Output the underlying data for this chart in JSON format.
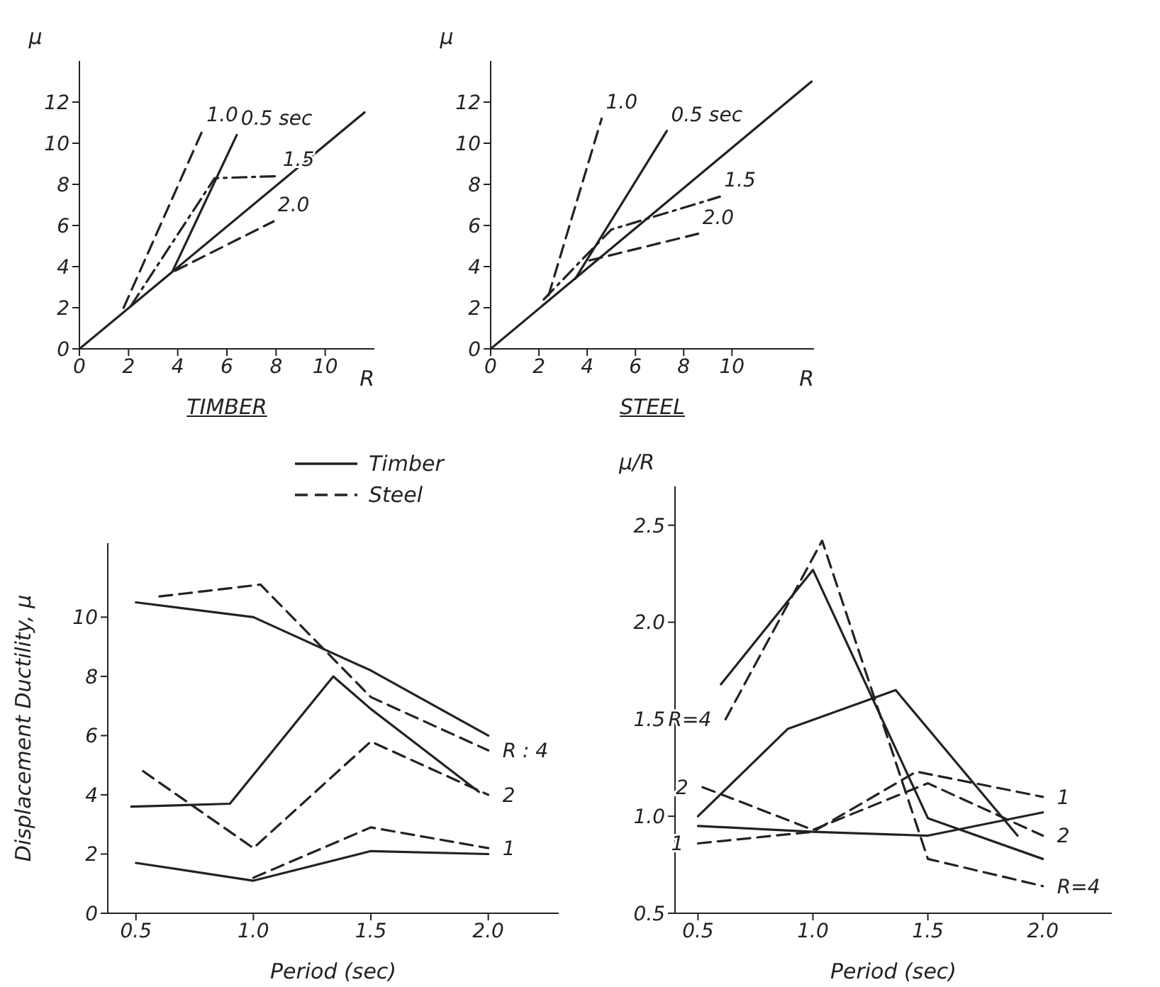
{
  "chart_data": [
    {
      "type": "line",
      "title": "TIMBER",
      "xlabel": "R",
      "ylabel": "μ",
      "xlim": [
        0,
        12
      ],
      "ylim": [
        0,
        14
      ],
      "xticks": [
        0,
        2,
        4,
        6,
        8,
        10
      ],
      "yticks": [
        0,
        2,
        4,
        6,
        8,
        10,
        12
      ],
      "series": [
        {
          "color": "#222222",
          "line_style": "solid",
          "x": [
            0,
            11.6
          ],
          "values": [
            0,
            11.5
          ]
        },
        {
          "name": "0.5 sec",
          "color": "#222222",
          "line_style": "solid",
          "x": [
            3.8,
            6.4
          ],
          "values": [
            3.8,
            10.4
          ]
        },
        {
          "name": "1.0",
          "color": "#222222",
          "line_style": "dashed",
          "x": [
            1.8,
            5.0
          ],
          "values": [
            2.0,
            10.6
          ]
        },
        {
          "name": "1.5",
          "color": "#222222",
          "line_style": "dashdot",
          "x": [
            2.1,
            5.5,
            8.1
          ],
          "values": [
            2.1,
            8.3,
            8.4
          ]
        },
        {
          "name": "2.0",
          "color": "#222222",
          "line_style": "dashed",
          "x": [
            3.9,
            7.9
          ],
          "values": [
            3.8,
            6.2
          ]
        }
      ]
    },
    {
      "type": "line",
      "title": "STEEL",
      "xlabel": "R",
      "ylabel": "μ",
      "xlim": [
        0,
        13.4
      ],
      "ylim": [
        0,
        14
      ],
      "xticks": [
        0,
        2,
        4,
        6,
        8,
        10
      ],
      "yticks": [
        0,
        2,
        4,
        6,
        8,
        10,
        12
      ],
      "series": [
        {
          "color": "#222222",
          "line_style": "solid",
          "x": [
            0,
            13.3
          ],
          "values": [
            0,
            13.0
          ]
        },
        {
          "name": "0.5 sec",
          "color": "#222222",
          "line_style": "solid",
          "x": [
            3.5,
            7.3
          ],
          "values": [
            3.4,
            10.6
          ]
        },
        {
          "name": "1.0",
          "color": "#222222",
          "line_style": "dashed",
          "x": [
            2.4,
            4.6
          ],
          "values": [
            2.6,
            11.2
          ]
        },
        {
          "name": "1.5",
          "color": "#222222",
          "line_style": "dashdot",
          "x": [
            2.2,
            4.0,
            5.0,
            9.5
          ],
          "values": [
            2.4,
            4.6,
            5.8,
            7.4
          ]
        },
        {
          "name": "2.0",
          "color": "#222222",
          "line_style": "dashed",
          "x": [
            4.1,
            8.6
          ],
          "values": [
            4.3,
            5.6
          ]
        }
      ]
    },
    {
      "type": "line",
      "xlabel": "Period (sec)",
      "ylabel": "Displacement Ductility, μ",
      "xlim": [
        0.38,
        2.3
      ],
      "ylim": [
        0,
        12.5
      ],
      "xticks": [
        {
          "value": 0.5,
          "label": "0.5"
        },
        {
          "value": 1,
          "label": "1.0"
        },
        {
          "value": 1.5,
          "label": "1.5"
        },
        {
          "value": 2,
          "label": "2.0"
        }
      ],
      "yticks": [
        0,
        2,
        4,
        6,
        8,
        10
      ],
      "legend": "top",
      "series": [
        {
          "name": "Timber",
          "color": "#222222",
          "line_style": "solid",
          "x": [
            0.5,
            1.0,
            1.5,
            2.0
          ],
          "values": [
            10.5,
            10.0,
            8.2,
            6.0
          ]
        },
        {
          "name": "Steel",
          "color": "#222222",
          "line_style": "dashed",
          "x": [
            0.6,
            1.03,
            1.5,
            2.0
          ],
          "values": [
            10.7,
            11.1,
            7.3,
            5.5
          ]
        },
        {
          "color": "#222222",
          "line_style": "solid",
          "x": [
            0.48,
            0.9,
            1.34,
            1.5,
            1.96
          ],
          "values": [
            3.6,
            3.7,
            8.0,
            6.9,
            4.1
          ]
        },
        {
          "color": "#222222",
          "line_style": "dashed",
          "x": [
            0.53,
            1.0,
            1.5,
            2.0
          ],
          "values": [
            4.8,
            2.2,
            5.8,
            4.0
          ]
        },
        {
          "color": "#222222",
          "line_style": "solid",
          "x": [
            0.5,
            1.0,
            1.5,
            2.0
          ],
          "values": [
            1.7,
            1.1,
            2.1,
            2.0
          ]
        },
        {
          "color": "#222222",
          "line_style": "dashed",
          "x": [
            1.0,
            1.5,
            2.0
          ],
          "values": [
            1.2,
            2.9,
            2.2
          ]
        }
      ],
      "annotations": [
        {
          "text": "R : 4",
          "x": 2.0,
          "y": 5.5
        },
        {
          "text": "2",
          "x": 2.0,
          "y": 4.0
        },
        {
          "text": "1",
          "x": 2.0,
          "y": 2.2
        }
      ]
    },
    {
      "type": "line",
      "xlabel": "Period (sec)",
      "ylabel": "μ/R",
      "xlim": [
        0.4,
        2.3
      ],
      "ylim": [
        0.5,
        2.7
      ],
      "xticks": [
        {
          "value": 0.5,
          "label": "0.5"
        },
        {
          "value": 1,
          "label": "1.0"
        },
        {
          "value": 1.5,
          "label": "1.5"
        },
        {
          "value": 2,
          "label": "2.0"
        }
      ],
      "yticks": [
        {
          "value": 0.5,
          "label": "0.5"
        },
        {
          "value": 1,
          "label": "1.0"
        },
        {
          "value": 1.5,
          "label": "1.5"
        },
        {
          "value": 2,
          "label": "2.0"
        },
        {
          "value": 2.5,
          "label": "2.5"
        }
      ],
      "series": [
        {
          "color": "#222222",
          "line_style": "solid",
          "x": [
            0.6,
            1.0,
            1.5,
            2.0
          ],
          "values": [
            1.68,
            2.27,
            0.99,
            0.78
          ]
        },
        {
          "color": "#222222",
          "line_style": "dashed",
          "x": [
            0.62,
            1.04,
            1.5,
            2.0
          ],
          "values": [
            1.5,
            2.42,
            0.78,
            0.64
          ]
        },
        {
          "color": "#222222",
          "line_style": "solid",
          "x": [
            0.5,
            0.89,
            1.36,
            1.89
          ],
          "values": [
            1.0,
            1.45,
            1.65,
            0.9
          ]
        },
        {
          "color": "#222222",
          "line_style": "dashed",
          "x": [
            0.52,
            1.0,
            1.5,
            2.0
          ],
          "values": [
            1.15,
            0.93,
            1.17,
            0.9
          ]
        },
        {
          "color": "#222222",
          "line_style": "solid",
          "x": [
            0.5,
            1.0,
            1.5,
            2.0
          ],
          "values": [
            0.95,
            0.92,
            0.9,
            1.02
          ]
        },
        {
          "color": "#222222",
          "line_style": "dashed",
          "x": [
            0.5,
            1.0,
            1.45,
            2.0
          ],
          "values": [
            0.86,
            0.92,
            1.23,
            1.1
          ]
        }
      ],
      "annotations": [
        {
          "text": "R=4",
          "x": 0.62,
          "y": 1.5
        },
        {
          "text": "2",
          "x": 0.52,
          "y": 1.15
        },
        {
          "text": "1",
          "x": 0.5,
          "y": 0.86
        },
        {
          "text": "1",
          "x": 2.0,
          "y": 1.1
        },
        {
          "text": "2",
          "x": 2.0,
          "y": 0.9
        },
        {
          "text": "R=4",
          "x": 2.0,
          "y": 0.64
        }
      ]
    }
  ]
}
